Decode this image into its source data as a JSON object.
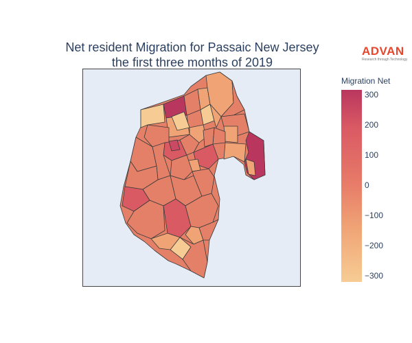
{
  "title": {
    "line1": "Net resident Migration for Passaic New Jersey",
    "line2": "the first three months of 2019"
  },
  "logo": {
    "word": "ADVAN",
    "tagline": "Research through Technology",
    "color": "#e8462c"
  },
  "colorbar": {
    "title": "Migration Net",
    "ticks": [
      "300",
      "200",
      "100",
      "0",
      "−100",
      "−200",
      "−300"
    ],
    "range": [
      -320,
      320
    ],
    "colorscale": [
      "#f7cc94",
      "#f0a476",
      "#e77a68",
      "#da5a64",
      "#b9375e"
    ]
  },
  "map": {
    "background": "#e5ecf6",
    "border_color": "#3a3a3a"
  }
}
